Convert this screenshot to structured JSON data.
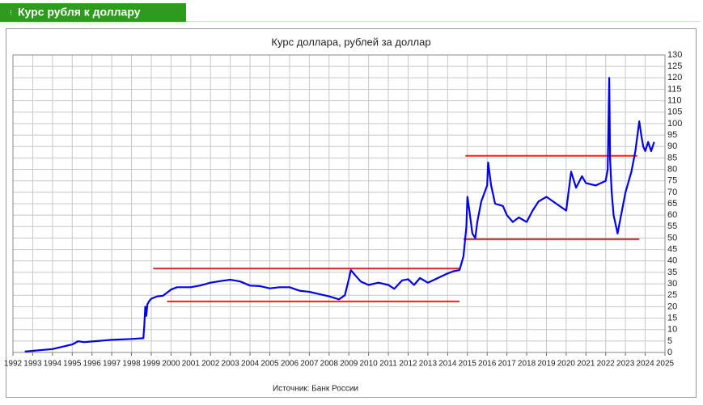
{
  "header": {
    "title": "Курс рубля к доллару"
  },
  "chart_data": {
    "type": "line",
    "title": "Курс доллара, рублей за доллар",
    "source": "Источник: Банк России",
    "xlim": [
      1992,
      2025
    ],
    "xticks": [
      1992,
      1993,
      1994,
      1995,
      1996,
      1997,
      1998,
      1999,
      2000,
      2001,
      2002,
      2003,
      2004,
      2005,
      2006,
      2007,
      2008,
      2009,
      2010,
      2011,
      2012,
      2013,
      2014,
      2015,
      2016,
      2017,
      2018,
      2019,
      2020,
      2021,
      2022,
      2023,
      2024,
      2025
    ],
    "ylim": [
      0,
      130
    ],
    "yticks": [
      0,
      5,
      10,
      15,
      20,
      25,
      30,
      35,
      40,
      45,
      50,
      55,
      60,
      65,
      70,
      75,
      80,
      85,
      90,
      95,
      100,
      105,
      110,
      115,
      120,
      125,
      130
    ],
    "grid": true,
    "series": [
      {
        "color": "#0000ee",
        "x": [
          1992.6,
          1993,
          1994,
          1995,
          1995.3,
          1995.6,
          1996,
          1997,
          1998,
          1998.6,
          1998.65,
          1998.7,
          1998.75,
          1998.8,
          1998.9,
          1999,
          1999.3,
          1999.6,
          2000,
          2000.3,
          2001,
          2001.5,
          2002,
          2002.5,
          2003,
          2003.5,
          2004,
          2004.5,
          2005,
          2005.5,
          2006,
          2006.5,
          2007,
          2007.5,
          2008,
          2008.5,
          2008.8,
          2009,
          2009.1,
          2009.3,
          2009.6,
          2010,
          2010.5,
          2011,
          2011.3,
          2011.7,
          2012,
          2012.3,
          2012.6,
          2013,
          2013.5,
          2014,
          2014.3,
          2014.6,
          2014.8,
          2014.95,
          2015,
          2015.1,
          2015.25,
          2015.4,
          2015.5,
          2015.7,
          2016,
          2016.05,
          2016.2,
          2016.4,
          2016.8,
          2017,
          2017.3,
          2017.6,
          2018,
          2018.3,
          2018.6,
          2019,
          2019.5,
          2020,
          2020.25,
          2020.5,
          2020.8,
          2021,
          2021.5,
          2022,
          2022.1,
          2022.18,
          2022.22,
          2022.3,
          2022.4,
          2022.6,
          2022.8,
          2023,
          2023.3,
          2023.5,
          2023.7,
          2023.8,
          2023.9,
          2024,
          2024.15,
          2024.3,
          2024.45
        ],
        "values": [
          0.4,
          0.7,
          1.5,
          3.5,
          4.9,
          4.5,
          4.8,
          5.5,
          5.9,
          6.2,
          12,
          20,
          16,
          21,
          22.5,
          23.5,
          24.5,
          24.8,
          27.5,
          28.5,
          28.5,
          29.3,
          30.5,
          31.2,
          31.8,
          31,
          29.2,
          29,
          28,
          28.5,
          28.5,
          27,
          26.5,
          25.5,
          24.5,
          23.2,
          25,
          32,
          36,
          34,
          31,
          29.5,
          30.5,
          29.5,
          27.8,
          31.5,
          32,
          29.5,
          32.5,
          30.5,
          32.5,
          34.5,
          35.5,
          36,
          42,
          55,
          68,
          62,
          52,
          50,
          57,
          66,
          73,
          83,
          73,
          65,
          64,
          60,
          57,
          59,
          57,
          62,
          66,
          68,
          65,
          62,
          79,
          72,
          77,
          74,
          73,
          75,
          80,
          120,
          85,
          70,
          60,
          52,
          61,
          70,
          79,
          88,
          101,
          95,
          90,
          88,
          92,
          88,
          92
        ]
      }
    ],
    "lines": [
      {
        "color": "#ee2222",
        "x": [
          1999.1,
          2014.6
        ],
        "values": [
          36.7,
          36.7
        ]
      },
      {
        "color": "#ee2222",
        "x": [
          1999.8,
          2014.6
        ],
        "values": [
          22.3,
          22.3
        ]
      },
      {
        "color": "#ee2222",
        "x": [
          2014.9,
          2023.6
        ],
        "values": [
          85.9,
          85.9
        ]
      },
      {
        "color": "#ee2222",
        "x": [
          2014.8,
          2023.7
        ],
        "values": [
          49.5,
          49.5
        ]
      }
    ]
  }
}
